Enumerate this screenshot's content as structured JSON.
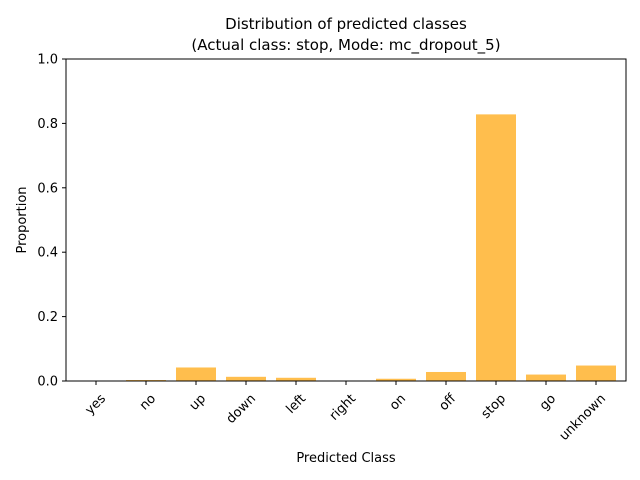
{
  "chart_data": {
    "type": "bar",
    "title_line1": "Distribution of predicted classes",
    "title_line2": "(Actual class: stop, Mode: mc_dropout_5)",
    "xlabel": "Predicted Class",
    "ylabel": "Proportion",
    "ylim": [
      0,
      1.0
    ],
    "yticks": [
      0.0,
      0.2,
      0.4,
      0.6,
      0.8,
      1.0
    ],
    "ytick_labels": [
      "0.0",
      "0.2",
      "0.4",
      "0.6",
      "0.8",
      "1.0"
    ],
    "categories": [
      "yes",
      "no",
      "up",
      "down",
      "left",
      "right",
      "on",
      "off",
      "stop",
      "go",
      "unknown"
    ],
    "values": [
      0.0,
      0.003,
      0.042,
      0.013,
      0.01,
      0.0,
      0.007,
      0.028,
      0.828,
      0.02,
      0.048
    ],
    "bar_color": "#ffbe4d",
    "grid": false,
    "legend": "none"
  }
}
